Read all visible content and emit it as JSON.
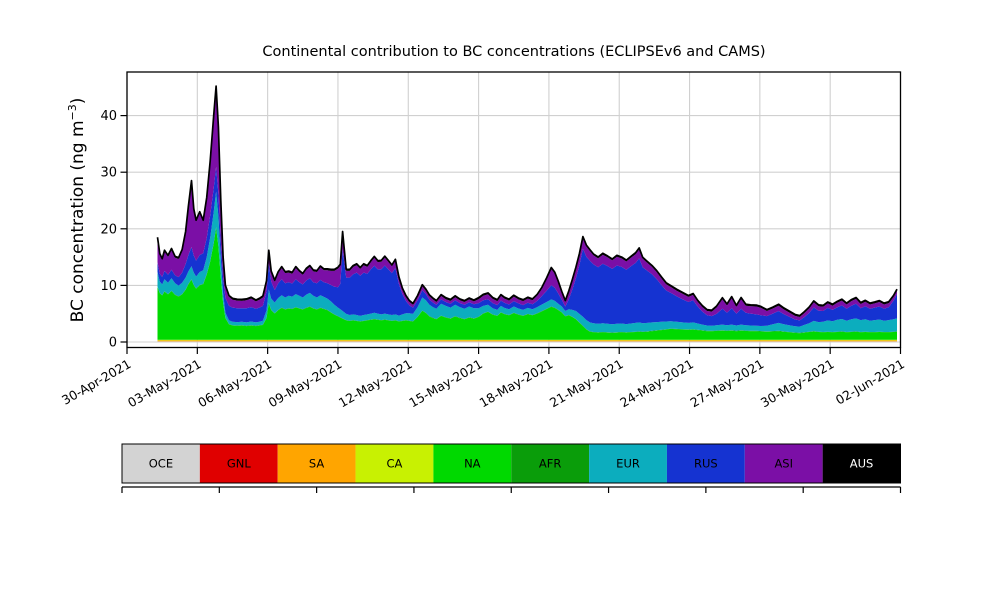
{
  "figure": {
    "title": "Continental contribution to BC concentrations (ECLIPSEv6 and CAMS)",
    "ylabel_main": "BC concentration (ng m",
    "ylabel_sup": "−3",
    "ylabel_close": ")"
  },
  "chart_data": {
    "type": "area",
    "stacked": true,
    "title": "Continental contribution to BC concentrations (ECLIPSEv6 and CAMS)",
    "xlabel": "",
    "ylabel": "BC concentration (ng m^-3)",
    "x_unit": "days since 30-Apr-2021 00:00 (hourly model series, shown 01-May to 02-Jun-2021)",
    "ylim": [
      -1,
      46.7
    ],
    "grid": true,
    "legend_position": "bottom bar",
    "y_ticks": [
      0,
      10,
      20,
      30,
      40
    ],
    "x_ticks": {
      "days": [
        0,
        3,
        6,
        9,
        12,
        15,
        18,
        21,
        24,
        27,
        30,
        33
      ],
      "labels": [
        "30-Apr-2021",
        "03-May-2021",
        "06-May-2021",
        "09-May-2021",
        "12-May-2021",
        "15-May-2021",
        "18-May-2021",
        "21-May-2021",
        "24-May-2021",
        "27-May-2021",
        "30-May-2021",
        "02-Jun-2021"
      ]
    },
    "stack_order_bottom_to_top": [
      "OCE",
      "GNL",
      "SA",
      "CA",
      "NA",
      "AFR",
      "EUR",
      "RUS",
      "ASI",
      "AUS"
    ],
    "legend": [
      {
        "label": "OCE",
        "color": "#d3d3d3"
      },
      {
        "label": "GNL",
        "color": "#e00000"
      },
      {
        "label": "SA",
        "color": "#ffa500"
      },
      {
        "label": "CA",
        "color": "#c8f102"
      },
      {
        "label": "NA",
        "color": "#00d900"
      },
      {
        "label": "AFR",
        "color": "#0a9d0a"
      },
      {
        "label": "EUR",
        "color": "#0cadbe"
      },
      {
        "label": "RUS",
        "color": "#1533d1"
      },
      {
        "label": "ASI",
        "color": "#7b0fa6"
      },
      {
        "label": "AUS",
        "color": "#000000",
        "text_color": "#ffffff"
      }
    ],
    "style": {
      "grid_color": "#d0d0d0",
      "outline_color": "#000000",
      "background": "#ffffff"
    },
    "days": [
      1.3,
      1.4,
      1.5,
      1.6,
      1.75,
      1.9,
      2.05,
      2.2,
      2.35,
      2.5,
      2.62,
      2.75,
      2.85,
      2.95,
      3.1,
      3.25,
      3.4,
      3.55,
      3.7,
      3.8,
      3.9,
      4.0,
      4.1,
      4.2,
      4.35,
      4.5,
      4.7,
      4.9,
      5.1,
      5.3,
      5.5,
      5.65,
      5.8,
      5.95,
      6.05,
      6.15,
      6.3,
      6.45,
      6.6,
      6.75,
      6.9,
      7.05,
      7.2,
      7.35,
      7.5,
      7.65,
      7.8,
      7.95,
      8.1,
      8.25,
      8.4,
      8.55,
      8.7,
      8.85,
      9.0,
      9.1,
      9.2,
      9.35,
      9.5,
      9.65,
      9.8,
      9.95,
      10.1,
      10.25,
      10.4,
      10.55,
      10.7,
      10.85,
      11.0,
      11.15,
      11.3,
      11.45,
      11.6,
      11.75,
      11.9,
      12.05,
      12.2,
      12.4,
      12.6,
      12.75,
      12.9,
      13.05,
      13.2,
      13.4,
      13.6,
      13.8,
      14.0,
      14.2,
      14.4,
      14.6,
      14.8,
      15.0,
      15.2,
      15.4,
      15.6,
      15.8,
      15.95,
      16.1,
      16.3,
      16.5,
      16.7,
      16.9,
      17.1,
      17.3,
      17.5,
      17.7,
      17.9,
      18.1,
      18.25,
      18.4,
      18.55,
      18.7,
      18.85,
      19.0,
      19.15,
      19.3,
      19.45,
      19.6,
      19.75,
      19.9,
      20.1,
      20.3,
      20.5,
      20.7,
      20.9,
      21.1,
      21.3,
      21.5,
      21.7,
      21.85,
      22.0,
      22.2,
      22.4,
      22.6,
      22.8,
      23.0,
      23.2,
      23.45,
      23.7,
      23.95,
      24.15,
      24.35,
      24.55,
      24.75,
      24.95,
      25.15,
      25.4,
      25.6,
      25.8,
      26.0,
      26.2,
      26.4,
      26.6,
      26.85,
      27.05,
      27.3,
      27.55,
      27.8,
      28.0,
      28.25,
      28.5,
      28.7,
      28.9,
      29.1,
      29.3,
      29.5,
      29.7,
      29.9,
      30.1,
      30.3,
      30.5,
      30.7,
      30.9,
      31.1,
      31.3,
      31.5,
      31.7,
      31.9,
      32.1,
      32.3,
      32.5,
      32.7,
      32.85
    ],
    "series": {
      "OCE": {
        "constant": 0.08
      },
      "GNL": {
        "constant": 0.03
      },
      "SA": {
        "constant": 0.18
      },
      "CA": {
        "constant": 0.12
      },
      "AFR": {
        "constant": 0.06
      },
      "AUS": {
        "constant": 0.25
      },
      "NA": {
        "values": [
          9.3,
          8.2,
          7.8,
          8.5,
          8.0,
          8.6,
          7.9,
          7.6,
          8.0,
          8.8,
          9.8,
          10.6,
          9.6,
          9.0,
          9.6,
          9.8,
          11.5,
          13.8,
          17.0,
          19.8,
          16.5,
          11.0,
          6.5,
          3.8,
          2.7,
          2.5,
          2.45,
          2.5,
          2.4,
          2.5,
          2.4,
          2.5,
          2.6,
          3.8,
          6.4,
          5.2,
          4.6,
          5.2,
          5.6,
          5.3,
          5.5,
          5.4,
          5.7,
          5.5,
          5.3,
          5.6,
          5.8,
          5.5,
          5.3,
          5.6,
          5.4,
          5.2,
          4.8,
          4.4,
          4.1,
          3.9,
          3.7,
          3.4,
          3.3,
          3.4,
          3.3,
          3.2,
          3.3,
          3.4,
          3.5,
          3.6,
          3.5,
          3.4,
          3.5,
          3.4,
          3.3,
          3.4,
          3.2,
          3.3,
          3.4,
          3.3,
          3.2,
          4.0,
          5.1,
          4.7,
          4.1,
          3.8,
          3.6,
          4.2,
          3.9,
          3.7,
          4.1,
          3.8,
          3.6,
          3.9,
          3.7,
          4.0,
          4.6,
          4.9,
          4.4,
          4.2,
          4.8,
          4.5,
          4.3,
          4.7,
          4.4,
          4.2,
          4.5,
          4.3,
          4.6,
          5.0,
          5.4,
          5.8,
          5.6,
          5.2,
          4.8,
          4.1,
          4.3,
          4.0,
          3.6,
          3.0,
          2.4,
          1.8,
          1.4,
          1.3,
          1.25,
          1.3,
          1.25,
          1.2,
          1.25,
          1.3,
          1.25,
          1.3,
          1.35,
          1.4,
          1.35,
          1.4,
          1.5,
          1.6,
          1.7,
          1.8,
          1.9,
          1.85,
          1.8,
          1.75,
          1.8,
          1.7,
          1.6,
          1.5,
          1.5,
          1.55,
          1.6,
          1.55,
          1.6,
          1.5,
          1.6,
          1.55,
          1.5,
          1.5,
          1.45,
          1.4,
          1.45,
          1.5,
          1.4,
          1.3,
          1.2,
          1.15,
          1.25,
          1.35,
          1.45,
          1.35,
          1.3,
          1.35,
          1.3,
          1.35,
          1.4,
          1.3,
          1.35,
          1.4,
          1.3,
          1.35,
          1.3,
          1.3,
          1.35,
          1.3,
          1.3,
          1.35,
          1.4
        ]
      },
      "EUR": {
        "values": [
          2.6,
          2.0,
          1.9,
          2.1,
          2.0,
          2.2,
          2.0,
          1.9,
          2.0,
          2.1,
          2.2,
          2.3,
          2.2,
          2.1,
          2.3,
          2.4,
          3.0,
          4.2,
          5.5,
          6.3,
          5.2,
          3.2,
          1.6,
          0.9,
          0.65,
          0.6,
          0.6,
          0.6,
          0.6,
          0.65,
          0.6,
          0.6,
          0.7,
          1.3,
          2.4,
          2.0,
          1.9,
          2.1,
          2.2,
          2.1,
          2.2,
          2.15,
          2.3,
          2.2,
          2.1,
          2.3,
          2.4,
          2.2,
          2.1,
          2.2,
          2.1,
          2.0,
          1.9,
          1.7,
          1.5,
          1.4,
          1.3,
          1.1,
          1.0,
          1.0,
          1.0,
          0.95,
          1.0,
          1.0,
          1.05,
          1.1,
          1.05,
          1.0,
          1.05,
          1.0,
          1.0,
          1.0,
          1.0,
          1.1,
          1.2,
          1.3,
          1.3,
          1.7,
          2.3,
          2.2,
          2.0,
          1.9,
          1.8,
          2.1,
          2.0,
          1.9,
          2.0,
          1.9,
          1.8,
          1.9,
          1.8,
          1.5,
          1.3,
          1.2,
          1.1,
          1.0,
          1.1,
          1.05,
          1.0,
          1.1,
          1.05,
          1.0,
          1.05,
          1.0,
          1.1,
          1.15,
          1.2,
          1.25,
          1.2,
          1.1,
          1.0,
          0.9,
          1.0,
          1.2,
          1.4,
          1.5,
          1.6,
          1.6,
          1.6,
          1.55,
          1.5,
          1.55,
          1.5,
          1.45,
          1.5,
          1.5,
          1.45,
          1.5,
          1.55,
          1.6,
          1.5,
          1.5,
          1.5,
          1.45,
          1.4,
          1.35,
          1.3,
          1.25,
          1.2,
          1.15,
          1.2,
          1.1,
          1.0,
          0.95,
          0.9,
          0.95,
          1.0,
          0.95,
          1.0,
          0.95,
          1.0,
          0.95,
          0.95,
          0.9,
          0.9,
          1.0,
          1.2,
          1.4,
          1.3,
          1.2,
          1.1,
          1.1,
          1.3,
          1.5,
          1.8,
          1.7,
          1.8,
          2.0,
          1.9,
          2.1,
          2.2,
          2.0,
          2.2,
          2.3,
          2.1,
          2.2,
          2.0,
          2.1,
          2.15,
          2.0,
          2.1,
          2.2,
          2.3
        ]
      },
      "RUS": {
        "values": [
          1.7,
          1.4,
          1.3,
          1.5,
          1.4,
          1.5,
          1.4,
          1.5,
          1.8,
          2.4,
          2.9,
          3.4,
          3.0,
          2.8,
          3.0,
          3.0,
          3.4,
          3.9,
          4.2,
          4.4,
          4.0,
          3.2,
          2.8,
          2.6,
          2.6,
          2.5,
          2.45,
          2.4,
          2.5,
          2.55,
          2.4,
          2.5,
          2.6,
          3.3,
          4.6,
          3.0,
          2.2,
          2.6,
          2.8,
          2.5,
          2.4,
          2.3,
          2.6,
          2.4,
          2.3,
          2.5,
          2.6,
          2.4,
          2.5,
          2.7,
          2.6,
          2.7,
          2.9,
          3.2,
          3.6,
          4.5,
          10.9,
          6.4,
          6.6,
          7.1,
          7.5,
          7.1,
          7.5,
          7.2,
          7.8,
          8.3,
          7.8,
          8.0,
          8.5,
          8.0,
          7.4,
          8.2,
          5.6,
          3.6,
          2.2,
          1.4,
          1.1,
          1.2,
          1.3,
          1.1,
          0.9,
          0.8,
          0.7,
          0.8,
          0.7,
          0.7,
          0.8,
          0.7,
          0.7,
          0.75,
          0.7,
          0.9,
          1.0,
          1.0,
          0.9,
          0.85,
          0.95,
          0.9,
          0.85,
          0.95,
          0.9,
          0.85,
          0.9,
          0.9,
          1.1,
          1.5,
          2.0,
          2.5,
          2.3,
          1.8,
          1.2,
          0.8,
          1.8,
          3.6,
          5.8,
          8.6,
          12.0,
          11.2,
          10.9,
          10.4,
          10.0,
          10.5,
          10.2,
          9.8,
          10.3,
          10.0,
          9.6,
          10.1,
          10.6,
          11.3,
          9.9,
          9.2,
          8.5,
          7.6,
          6.5,
          5.5,
          5.0,
          4.5,
          4.1,
          3.7,
          3.9,
          3.0,
          2.3,
          1.8,
          1.7,
          2.0,
          2.8,
          2.2,
          2.9,
          2.1,
          2.8,
          2.2,
          2.1,
          2.0,
          1.9,
          1.7,
          1.9,
          2.1,
          1.8,
          1.5,
          1.2,
          1.1,
          1.4,
          1.8,
          2.4,
          2.0,
          1.9,
          2.2,
          2.0,
          2.2,
          2.4,
          2.1,
          2.4,
          2.6,
          2.1,
          2.3,
          2.1,
          2.2,
          2.3,
          2.1,
          2.3,
          3.3,
          4.3
        ]
      },
      "ASI": {
        "values": [
          4.2,
          3.3,
          3.0,
          3.4,
          3.2,
          3.5,
          3.1,
          3.2,
          3.8,
          5.5,
          8.4,
          11.5,
          8.0,
          6.9,
          7.4,
          5.6,
          6.9,
          9.4,
          12.6,
          14.0,
          11.6,
          6.9,
          3.4,
          2.0,
          1.55,
          1.4,
          1.35,
          1.3,
          1.4,
          1.5,
          1.3,
          1.4,
          1.5,
          1.7,
          2.1,
          1.6,
          1.5,
          1.8,
          2.0,
          1.8,
          1.7,
          1.75,
          2.0,
          1.8,
          1.7,
          1.9,
          2.0,
          1.9,
          2.0,
          2.2,
          2.1,
          2.3,
          2.5,
          2.8,
          3.3,
          3.2,
          2.9,
          1.2,
          1.2,
          1.3,
          1.3,
          1.2,
          1.3,
          1.2,
          1.3,
          1.4,
          1.3,
          1.3,
          1.4,
          1.3,
          1.2,
          1.3,
          1.0,
          0.8,
          0.7,
          0.6,
          0.5,
          0.6,
          0.7,
          0.6,
          0.6,
          0.55,
          0.5,
          0.55,
          0.5,
          0.5,
          0.55,
          0.5,
          0.5,
          0.5,
          0.5,
          0.7,
          0.8,
          0.85,
          0.75,
          0.7,
          0.8,
          0.75,
          0.7,
          0.8,
          0.7,
          0.7,
          0.75,
          0.7,
          0.9,
          1.3,
          2.0,
          2.9,
          2.5,
          1.9,
          1.2,
          0.8,
          1.2,
          1.5,
          1.7,
          1.8,
          1.9,
          1.8,
          1.7,
          1.6,
          1.55,
          1.6,
          1.55,
          1.5,
          1.55,
          1.5,
          1.45,
          1.5,
          1.55,
          1.6,
          1.5,
          1.4,
          1.3,
          1.25,
          1.2,
          1.1,
          1.05,
          1.0,
          0.95,
          0.9,
          0.95,
          0.85,
          0.8,
          0.75,
          0.8,
          1.1,
          1.7,
          1.3,
          1.8,
          1.2,
          1.75,
          1.25,
          1.3,
          1.4,
          1.3,
          0.9,
          0.9,
          0.95,
          0.85,
          0.75,
          0.65,
          0.6,
          0.7,
          0.8,
          0.9,
          0.8,
          0.75,
          0.8,
          0.75,
          0.8,
          0.85,
          0.75,
          0.8,
          0.85,
          0.75,
          0.8,
          0.75,
          0.75,
          0.8,
          0.75,
          0.7,
          0.65,
          0.6
        ]
      }
    }
  }
}
